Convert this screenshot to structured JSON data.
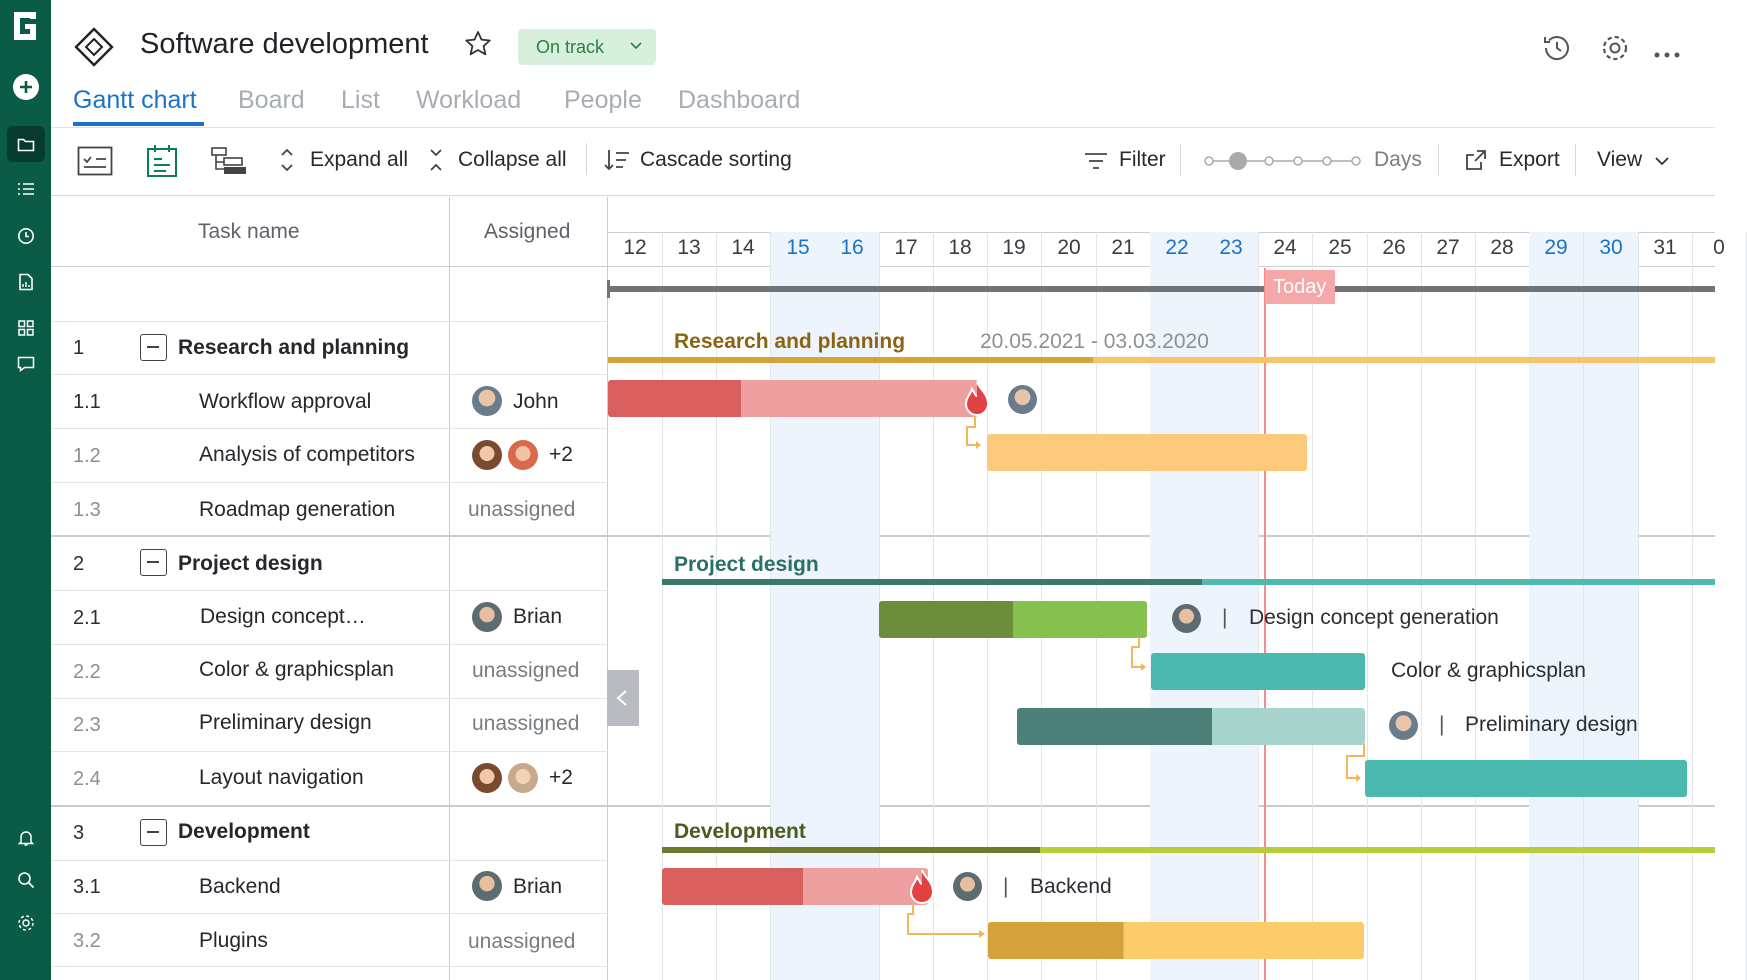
{
  "project": {
    "title": "Software development",
    "status": "On track"
  },
  "tabs": [
    {
      "label": "Gantt chart",
      "active": true
    },
    {
      "label": "Board"
    },
    {
      "label": "List"
    },
    {
      "label": "Workload"
    },
    {
      "label": "People"
    },
    {
      "label": "Dashboard"
    }
  ],
  "toolbar": {
    "expand_all": "Expand all",
    "collapse_all": "Collapse all",
    "cascade_sorting": "Cascade sorting",
    "filter": "Filter",
    "zoom_label": "Days",
    "export": "Export",
    "view": "View"
  },
  "grid": {
    "col_task": "Task name",
    "col_assigned": "Assigned"
  },
  "timeline": {
    "days": [
      "12",
      "13",
      "14",
      "15",
      "16",
      "17",
      "18",
      "19",
      "20",
      "21",
      "22",
      "23",
      "24",
      "25",
      "26",
      "27",
      "28",
      "29",
      "30",
      "31",
      "0"
    ],
    "weekend_days": [
      "15",
      "16",
      "22",
      "23",
      "29",
      "30"
    ],
    "today_label": "Today"
  },
  "rows": [
    {
      "num": "1",
      "name": "Research and planning",
      "group": true
    },
    {
      "num": "1.1",
      "name": "Workflow approval",
      "assigned": "John"
    },
    {
      "num": "1.2",
      "name": "Analysis of competitors",
      "assigned": "+2"
    },
    {
      "num": "1.3",
      "name": "Roadmap generation",
      "assigned": "unassigned"
    },
    {
      "num": "2",
      "name": "Project design",
      "group": true
    },
    {
      "num": "2.1",
      "name": "Design concept…",
      "assigned": "Brian"
    },
    {
      "num": "2.2",
      "name": "Color & graphicsplan",
      "assigned": "unassigned"
    },
    {
      "num": "2.3",
      "name": "Preliminary design",
      "assigned": "unassigned"
    },
    {
      "num": "2.4",
      "name": "Layout navigation",
      "assigned": "+2"
    },
    {
      "num": "3",
      "name": "Development",
      "group": true
    },
    {
      "num": "3.1",
      "name": "Backend",
      "assigned": "Brian"
    },
    {
      "num": "3.2",
      "name": "Plugins",
      "assigned": "unassigned"
    }
  ],
  "gantt": {
    "research_label": "Research and planning",
    "research_dates": "20.05.2021 - 03.03.2020",
    "design_label": "Project design",
    "design_concept_label": "Design concept generation",
    "color_label": "Color & graphicsplan",
    "preliminary_label": "Preliminary design",
    "dev_label": "Development",
    "backend_label": "Backend"
  },
  "colors": {
    "rail": "#0a5c46",
    "accent": "#1a73c9",
    "status_bg": "#d7f0dc",
    "status_fg": "#2e7d47",
    "today": "#f3a3a3"
  }
}
